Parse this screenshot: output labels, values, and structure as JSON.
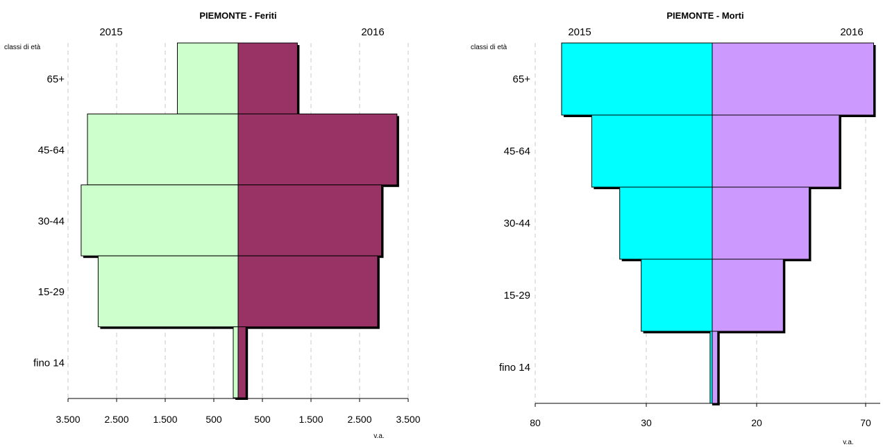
{
  "chart_data": [
    {
      "type": "bar",
      "orientation": "horizontal",
      "title": "PIEMONTE - Feriti",
      "left_header": "2015",
      "right_header": "2016",
      "ylabel": "classi di età",
      "xlabel": "v.a.",
      "categories": [
        "65+",
        "45-64",
        "30-44",
        "15-29",
        "fino 14"
      ],
      "series": [
        {
          "name": "2015",
          "side": "left",
          "values": [
            1250,
            3100,
            3230,
            2880,
            100
          ],
          "color": "#ccffcc"
        },
        {
          "name": "2016",
          "side": "right",
          "values": [
            1220,
            3270,
            2950,
            2870,
            160
          ],
          "color": "#993366"
        }
      ],
      "xlim": [
        -3500,
        3500
      ],
      "xticks": [
        {
          "value": -3500,
          "label": "3.500"
        },
        {
          "value": -2500,
          "label": "2.500"
        },
        {
          "value": -1500,
          "label": "1.500"
        },
        {
          "value": -500,
          "label": "500"
        },
        {
          "value": 500,
          "label": "500"
        },
        {
          "value": 1500,
          "label": "1.500"
        },
        {
          "value": 2500,
          "label": "2.500"
        },
        {
          "value": 3500,
          "label": "3.500"
        }
      ],
      "grid": true
    },
    {
      "type": "bar",
      "orientation": "horizontal",
      "title": "PIEMONTE - Morti",
      "left_header": "2015",
      "right_header": "2016",
      "ylabel": "classi di età",
      "xlabel": "v.a.",
      "categories": [
        "65+",
        "45-64",
        "30-44",
        "15-29",
        "fino 14"
      ],
      "series": [
        {
          "name": "2015",
          "side": "left",
          "values": [
            70,
            56,
            43,
            33,
            1
          ],
          "color": "#00ffff"
        },
        {
          "name": "2016",
          "side": "right",
          "values": [
            75,
            59,
            45,
            33,
            2.5
          ],
          "color": "#cc99ff"
        }
      ],
      "tick_labels": [
        "80",
        "30",
        "20",
        "70"
      ],
      "xlabels_text": {
        "a": "80",
        "b": "30",
        "c": "20",
        "d": "70"
      },
      "grid": true
    }
  ]
}
